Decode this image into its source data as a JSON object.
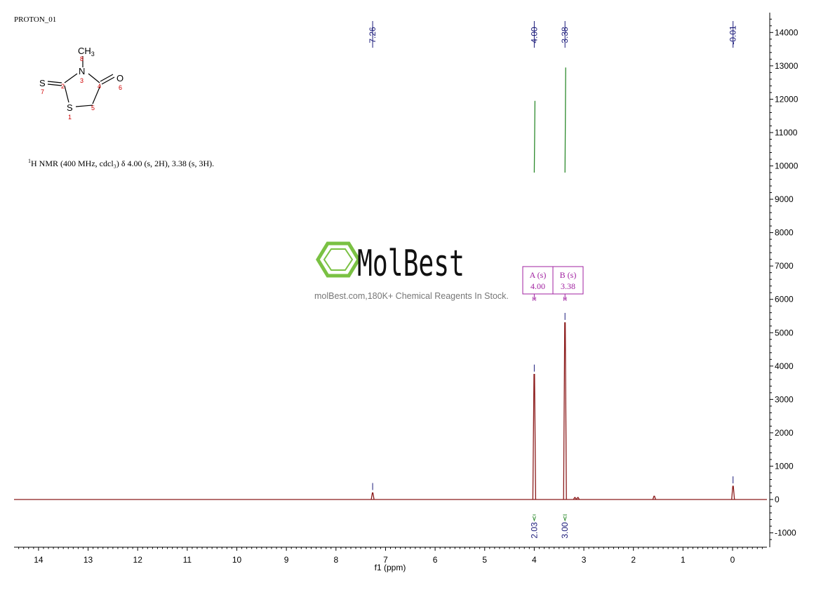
{
  "experiment_label": "PROTON_01",
  "caption": {
    "superscript": "1",
    "text": "H NMR (400 MHz, cdcl₃) δ 4.00 (s, 2H), 3.38 (s, 3H)."
  },
  "watermark": {
    "brand": "MolBest",
    "tagline": "molBest.com,180K+ Chemical Reagents In Stock.",
    "logo_color": "#7ac143",
    "logo_icon": "benzene-hexagon-icon"
  },
  "structure": {
    "atoms": [
      {
        "symbol": "S",
        "number": "7"
      },
      {
        "symbol": "",
        "number": "2"
      },
      {
        "symbol": "N",
        "number": "3"
      },
      {
        "symbol": "CH3",
        "number": "8"
      },
      {
        "symbol": "",
        "number": "4"
      },
      {
        "symbol": "O",
        "number": "6"
      },
      {
        "symbol": "",
        "number": "5"
      },
      {
        "symbol": "S",
        "number": "1"
      }
    ],
    "number_color": "#d00000"
  },
  "chart_data": {
    "type": "line",
    "xlabel": "f1 (ppm)",
    "xlim": [
      14.5,
      -0.7
    ],
    "ylim": [
      -1400,
      14500
    ],
    "x_ticks": [
      14,
      13,
      12,
      11,
      10,
      9,
      8,
      7,
      6,
      5,
      4,
      3,
      2,
      1,
      0
    ],
    "y_ticks": [
      -1000,
      0,
      1000,
      2000,
      3000,
      4000,
      5000,
      6000,
      7000,
      8000,
      9000,
      10000,
      11000,
      12000,
      13000,
      14000
    ],
    "peaks": [
      {
        "ppm": 7.26,
        "height": 200,
        "label": "7.26"
      },
      {
        "ppm": 4.0,
        "height": 3750,
        "label": "4.00"
      },
      {
        "ppm": 3.38,
        "height": 5300,
        "label": "3.38"
      },
      {
        "ppm": 3.18,
        "height": 60,
        "label": ""
      },
      {
        "ppm": 3.12,
        "height": 60,
        "label": ""
      },
      {
        "ppm": 1.58,
        "height": 100,
        "label": ""
      },
      {
        "ppm": -0.01,
        "height": 400,
        "label": "-0.01"
      }
    ],
    "integrals": [
      {
        "from": 4.03,
        "to": 3.97,
        "value": "2.03",
        "curve_low": 9800,
        "curve_high": 11950
      },
      {
        "from": 3.42,
        "to": 3.34,
        "value": "3.00",
        "curve_low": 9800,
        "curve_high": 12950
      }
    ],
    "multiplets": [
      {
        "name": "A (s)",
        "shift": "4.00",
        "ppm": 4.0,
        "unit": "H"
      },
      {
        "name": "B (s)",
        "shift": "3.38",
        "ppm": 3.38,
        "unit": "H"
      }
    ],
    "colors": {
      "spectrum": "#8b1a1a",
      "integral": "#2e8b2e",
      "peak_label": "#1a1a7a",
      "multiplet_box": "#a020a0",
      "axis": "#000000"
    }
  }
}
